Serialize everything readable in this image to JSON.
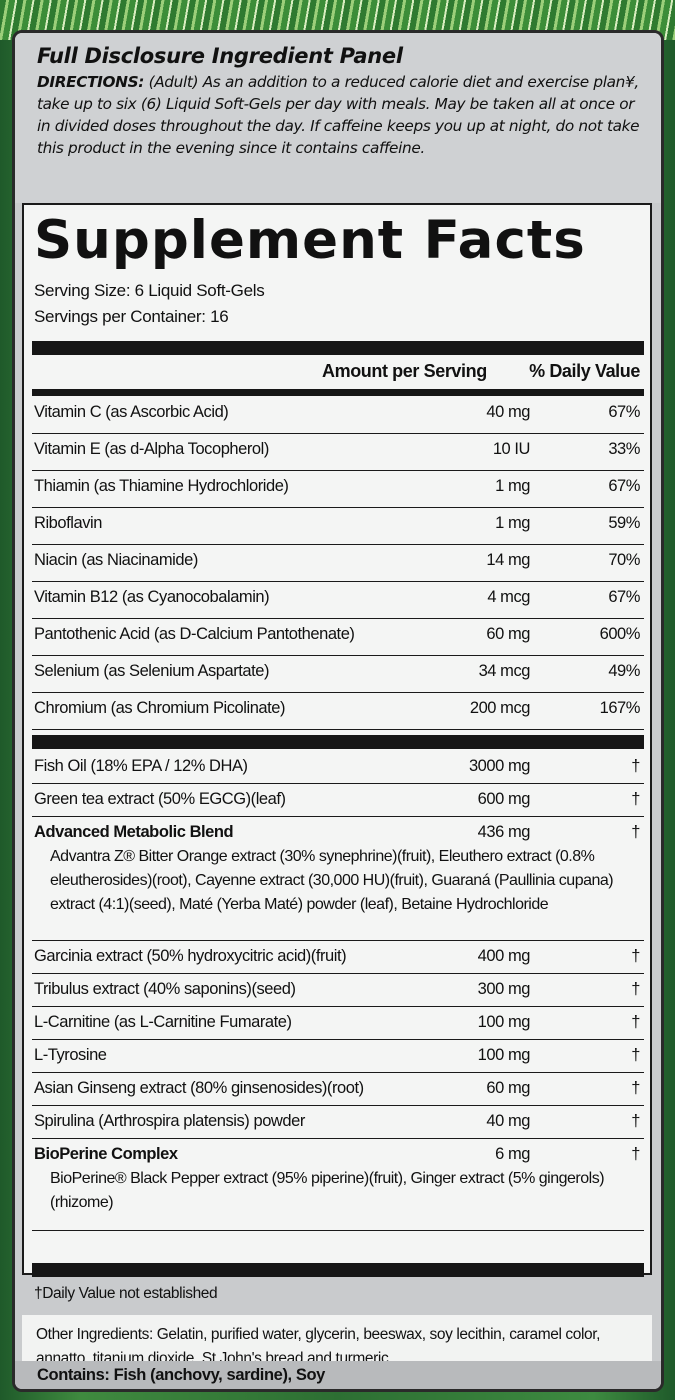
{
  "panel_title": "Full Disclosure Ingredient Panel",
  "directions": {
    "label": "DIRECTIONS:",
    "text": "(Adult) As an addition to a reduced calorie diet and exercise plan¥, take up to six (6) Liquid Soft-Gels per day with meals. May be taken all at once or in divided doses throughout the day. If caffeine keeps you up at night, do not take this product in the evening since it contains caffeine."
  },
  "facts": {
    "title": "Supplement Facts",
    "serving_size": "Serving Size:  6 Liquid Soft-Gels",
    "servings_per_container": "Servings per Container:  16",
    "header_amount": "Amount per Serving",
    "header_dv": "% Daily Value",
    "vitamins": [
      {
        "name": "Vitamin C (as Ascorbic Acid)",
        "amount": "40 mg",
        "dv": "67%"
      },
      {
        "name": "Vitamin E (as d-Alpha Tocopherol)",
        "amount": "10 IU",
        "dv": "33%"
      },
      {
        "name": "Thiamin (as Thiamine Hydrochloride)",
        "amount": "1 mg",
        "dv": "67%"
      },
      {
        "name": "Riboflavin",
        "amount": "1 mg",
        "dv": "59%"
      },
      {
        "name": "Niacin (as Niacinamide)",
        "amount": "14 mg",
        "dv": "70%"
      },
      {
        "name": "Vitamin B12 (as Cyanocobalamin)",
        "amount": "4 mcg",
        "dv": "67%"
      },
      {
        "name": "Pantothenic Acid (as D-Calcium Pantothenate)",
        "amount": "60 mg",
        "dv": "600%"
      },
      {
        "name": "Selenium (as Selenium Aspartate)",
        "amount": "34 mcg",
        "dv": "49%"
      },
      {
        "name": "Chromium (as Chromium Picolinate)",
        "amount": "200 mcg",
        "dv": "167%"
      }
    ],
    "others": [
      {
        "name": "Fish Oil (18% EPA / 12% DHA)",
        "amount": "3000 mg",
        "dv": "†"
      },
      {
        "name": "Green tea extract (50% EGCG)(leaf)",
        "amount": "600 mg",
        "dv": "†"
      },
      {
        "name": "Advanced Metabolic Blend",
        "amount": "436 mg",
        "dv": "†",
        "bold": true,
        "desc": "Advantra Z® Bitter Orange extract (30% synephrine)(fruit), Eleuthero extract (0.8% eleutherosides)(root), Cayenne extract (30,000 HU)(fruit), Guaraná (Paullinia cupana) extract (4:1)(seed), Maté (Yerba Maté) powder (leaf), Betaine Hydrochloride"
      },
      {
        "name": "Garcinia extract (50% hydroxycitric acid)(fruit)",
        "amount": "400 mg",
        "dv": "†"
      },
      {
        "name": "Tribulus extract (40% saponins)(seed)",
        "amount": "300 mg",
        "dv": "†"
      },
      {
        "name": "L-Carnitine (as L-Carnitine Fumarate)",
        "amount": "100 mg",
        "dv": "†"
      },
      {
        "name": "L-Tyrosine",
        "amount": "100 mg",
        "dv": "†"
      },
      {
        "name": "Asian Ginseng extract (80% ginsenosides)(root)",
        "amount": "60 mg",
        "dv": "†"
      },
      {
        "name": "Spirulina (Arthrospira platensis) powder",
        "amount": "40 mg",
        "dv": "†"
      },
      {
        "name": "BioPerine Complex",
        "amount": "6 mg",
        "dv": "†",
        "bold": true,
        "desc": "BioPerine® Black Pepper extract (95% piperine)(fruit), Ginger extract (5% gingerols)(rhizome)"
      }
    ],
    "footnote": "†Daily Value not established"
  },
  "other_ingredients": "Other Ingredients:  Gelatin, purified water, glycerin, beeswax, soy lecithin, caramel color, annatto, titanium dioxide, St John's bread and turmeric.",
  "contains": "Contains:  Fish (anchovy, sardine), Soy"
}
